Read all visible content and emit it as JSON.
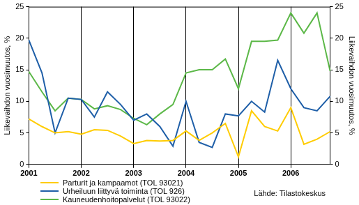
{
  "chart_data": {
    "type": "line",
    "y_label": "Liikevaihdon vuosimuutos, %",
    "y2_label": "Liikevaihdon vuosimuutos, %",
    "annotations": [
      "Lähde: Tilastokeskus"
    ],
    "categories": [
      "2001",
      null,
      null,
      null,
      "2002",
      null,
      null,
      null,
      "2003",
      null,
      null,
      null,
      "2004",
      null,
      null,
      null,
      "2005",
      null,
      null,
      null,
      "2006",
      null,
      null,
      null
    ],
    "series": [
      {
        "name": "Parturit ja kampaamot (TOL 93021)",
        "color": "#ffcc00",
        "values": [
          7.2,
          6.0,
          5.0,
          5.2,
          4.8,
          5.5,
          5.4,
          4.5,
          3.3,
          3.8,
          3.7,
          3.8,
          5.3,
          3.8,
          5.0,
          6.5,
          1.2,
          8.5,
          6.0,
          5.3,
          9.0,
          3.2,
          4.0,
          5.2
        ]
      },
      {
        "name": "Urheiluun liittyvä toiminta (TOL 926)",
        "color": "#1f5fa8",
        "values": [
          19.7,
          14.5,
          5.0,
          10.5,
          10.3,
          7.5,
          11.5,
          9.5,
          7.0,
          8.0,
          6.0,
          2.9,
          10.0,
          3.5,
          2.7,
          8.0,
          7.7,
          10.0,
          8.3,
          16.5,
          12.0,
          9.0,
          8.5,
          10.8
        ]
      },
      {
        "name": "Kauneudenhoitopalvelut (TOL 93022)",
        "color": "#5cb848",
        "values": [
          14.7,
          11.5,
          8.5,
          10.5,
          10.3,
          8.8,
          9.3,
          8.7,
          7.3,
          6.3,
          8.0,
          9.5,
          14.5,
          15.0,
          15.0,
          16.7,
          12.0,
          19.5,
          19.5,
          19.7,
          24.0,
          20.8,
          24.0,
          14.8
        ]
      }
    ],
    "ylim": [
      0,
      25
    ],
    "yticks": [
      0,
      5,
      10,
      15,
      20,
      25
    ],
    "y2lim": [
      0,
      25
    ],
    "y2ticks": [
      0,
      5,
      10,
      15,
      20,
      25
    ],
    "grid": "x",
    "legend": "bottom left"
  }
}
